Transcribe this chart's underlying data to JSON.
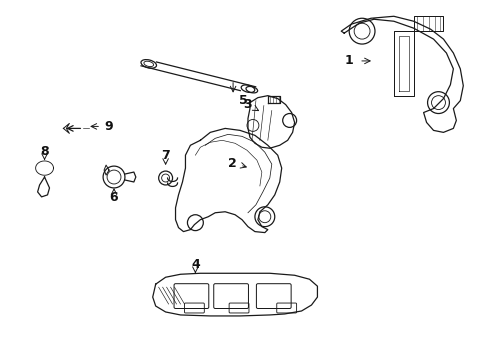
{
  "bg_color": "#ffffff",
  "line_color": "#1a1a1a",
  "label_color": "#111111",
  "fig_width": 4.89,
  "fig_height": 3.6,
  "dpi": 100
}
